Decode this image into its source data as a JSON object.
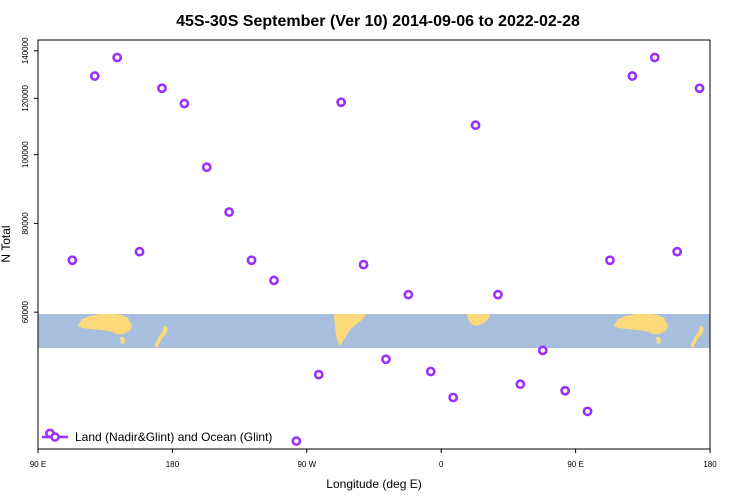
{
  "chart_data": {
    "type": "scatter",
    "title": "45S-30S September (Ver 10)   2014-09-06 to 2022-02-28",
    "xlabel": "Longitude (deg E)",
    "ylabel": "N Total",
    "y_scale": "log",
    "xlim": [
      90,
      540
    ],
    "ylim": [
      38500,
      145000
    ],
    "x_tick_labels": [
      {
        "x": 90,
        "label": "90 E"
      },
      {
        "x": 180,
        "label": "180"
      },
      {
        "x": 270,
        "label": "90 W"
      },
      {
        "x": 360,
        "label": "0"
      },
      {
        "x": 450,
        "label": "90 E"
      },
      {
        "x": 540,
        "label": "180"
      }
    ],
    "y_ticks": [
      60000,
      80000,
      100000,
      120000,
      140000
    ],
    "legend": {
      "label": "Land (Nadir&Glint) and Ocean (Glint)",
      "position": "bottom-left"
    },
    "series": [
      {
        "name": "Land (Nadir&Glint) and Ocean (Glint)",
        "color": "#9b30ff",
        "points": [
          {
            "x": 98,
            "y": 40500
          },
          {
            "x": 113,
            "y": 71000
          },
          {
            "x": 128,
            "y": 129000
          },
          {
            "x": 143,
            "y": 137000
          },
          {
            "x": 158,
            "y": 73000
          },
          {
            "x": 173,
            "y": 124000
          },
          {
            "x": 188,
            "y": 118000
          },
          {
            "x": 203,
            "y": 96000
          },
          {
            "x": 218,
            "y": 83000
          },
          {
            "x": 233,
            "y": 71000
          },
          {
            "x": 248,
            "y": 66500
          },
          {
            "x": 263,
            "y": 39500
          },
          {
            "x": 278,
            "y": 49000
          },
          {
            "x": 293,
            "y": 118500
          },
          {
            "x": 308,
            "y": 70000
          },
          {
            "x": 323,
            "y": 51500
          },
          {
            "x": 338,
            "y": 63500
          },
          {
            "x": 353,
            "y": 49500
          },
          {
            "x": 368,
            "y": 45500
          },
          {
            "x": 383,
            "y": 110000
          },
          {
            "x": 398,
            "y": 63500
          },
          {
            "x": 413,
            "y": 47500
          },
          {
            "x": 428,
            "y": 53000
          },
          {
            "x": 443,
            "y": 46500
          },
          {
            "x": 458,
            "y": 43500
          },
          {
            "x": 473,
            "y": 71000
          },
          {
            "x": 488,
            "y": 129000
          },
          {
            "x": 503,
            "y": 137000
          },
          {
            "x": 518,
            "y": 73000
          },
          {
            "x": 533,
            "y": 124000
          }
        ]
      }
    ]
  },
  "map_strip": {
    "ocean_color": "#a7bedd",
    "land_color": "#fcd97a"
  }
}
